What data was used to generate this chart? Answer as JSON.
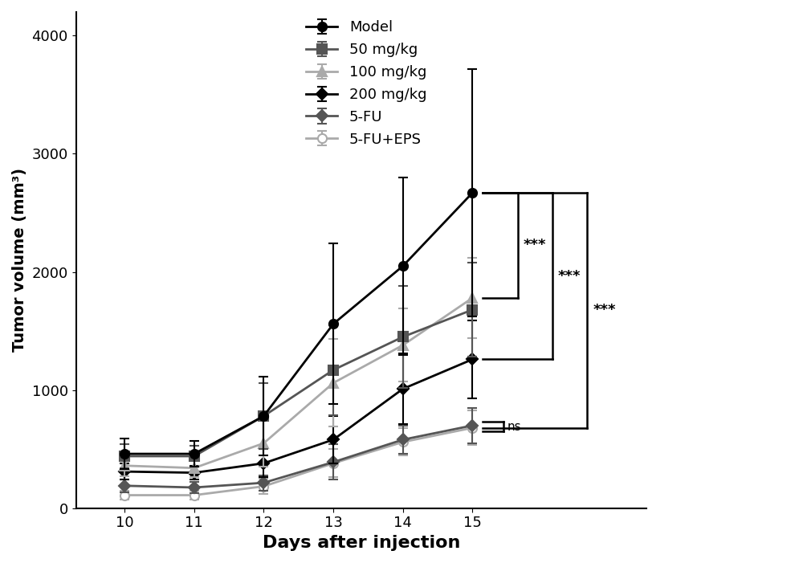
{
  "days": [
    10,
    11,
    12,
    13,
    14,
    15
  ],
  "series": {
    "Model": {
      "mean": [
        460,
        460,
        780,
        1560,
        2050,
        2670
      ],
      "err": [
        130,
        110,
        330,
        680,
        750,
        1050
      ],
      "color": "#000000",
      "marker": "o",
      "markerfacecolor": "#000000",
      "linewidth": 2.0,
      "markersize": 8,
      "zorder": 6
    },
    "50 mg/kg": {
      "mean": [
        440,
        440,
        780,
        1170,
        1450,
        1680
      ],
      "err": [
        100,
        90,
        280,
        380,
        430,
        400
      ],
      "color": "#555555",
      "marker": "s",
      "markerfacecolor": "#555555",
      "linewidth": 2.0,
      "markersize": 8,
      "zorder": 5
    },
    "100 mg/kg": {
      "mean": [
        360,
        340,
        550,
        1060,
        1380,
        1780
      ],
      "err": [
        90,
        80,
        200,
        370,
        310,
        340
      ],
      "color": "#aaaaaa",
      "marker": "^",
      "markerfacecolor": "#aaaaaa",
      "linewidth": 2.0,
      "markersize": 8,
      "zorder": 4
    },
    "200 mg/kg": {
      "mean": [
        310,
        300,
        380,
        580,
        1010,
        1260
      ],
      "err": [
        70,
        60,
        120,
        200,
        300,
        330
      ],
      "color": "#000000",
      "marker": "D",
      "markerfacecolor": "#000000",
      "linewidth": 2.0,
      "markersize": 7,
      "zorder": 3
    },
    "5-FU": {
      "mean": [
        190,
        175,
        215,
        390,
        580,
        700
      ],
      "err": [
        55,
        50,
        65,
        150,
        120,
        150
      ],
      "color": "#555555",
      "marker": "D",
      "markerfacecolor": "#555555",
      "linewidth": 2.0,
      "markersize": 7,
      "zorder": 2
    },
    "5-FU+EPS": {
      "mean": [
        110,
        110,
        185,
        380,
        560,
        680
      ],
      "err": [
        40,
        40,
        65,
        120,
        115,
        145
      ],
      "color": "#aaaaaa",
      "marker": "o",
      "markerfacecolor": "white",
      "linewidth": 2.0,
      "markersize": 8,
      "zorder": 1
    }
  },
  "xlabel": "Days after injection",
  "ylabel": "Tumor volume (mm³)",
  "ylim": [
    0,
    4200
  ],
  "yticks": [
    0,
    1000,
    2000,
    3000,
    4000
  ],
  "xlim": [
    9.3,
    15.7
  ],
  "xticks": [
    10,
    11,
    12,
    13,
    14,
    15
  ],
  "legend_order": [
    "Model",
    "50 mg/kg",
    "100 mg/kg",
    "200 mg/kg",
    "5-FU",
    "5-FU+EPS"
  ],
  "background_color": "#ffffff"
}
